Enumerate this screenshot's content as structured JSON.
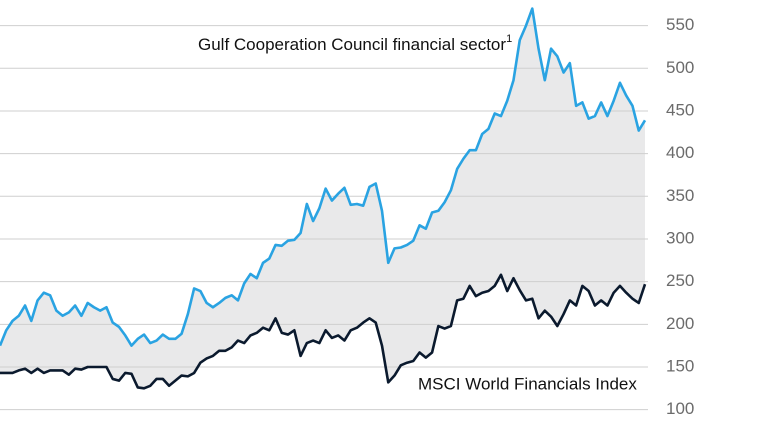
{
  "chart_data": {
    "type": "line",
    "series": [
      {
        "name": "Gulf Cooperation Council financial sector",
        "footnote": "1",
        "color": "#2aa3e2",
        "values": [
          175,
          193,
          204,
          210,
          222,
          204,
          228,
          237,
          234,
          216,
          210,
          214,
          222,
          210,
          225,
          220,
          216,
          220,
          202,
          197,
          187,
          175,
          183,
          188,
          178,
          181,
          188,
          183,
          183,
          189,
          212,
          242,
          239,
          225,
          220,
          225,
          231,
          234,
          228,
          248,
          259,
          254,
          272,
          277,
          293,
          292,
          298,
          299,
          307,
          341,
          321,
          336,
          359,
          345,
          353,
          360,
          340,
          341,
          339,
          361,
          365,
          333,
          272,
          289,
          290,
          293,
          298,
          316,
          312,
          331,
          333,
          343,
          357,
          382,
          394,
          404,
          404,
          423,
          429,
          447,
          444,
          462,
          486,
          533,
          550,
          570,
          523,
          486,
          523,
          514,
          495,
          506,
          456,
          460,
          441,
          444,
          460,
          444,
          462,
          483,
          468,
          456,
          427,
          439
        ]
      },
      {
        "name": "MSCI World Financials Index",
        "color": "#0b1a2e",
        "values": [
          143,
          143,
          143,
          146,
          148,
          143,
          148,
          143,
          146,
          146,
          146,
          141,
          148,
          147,
          150,
          150,
          150,
          150,
          136,
          134,
          143,
          142,
          126,
          125,
          128,
          136,
          136,
          128,
          134,
          140,
          139,
          143,
          155,
          160,
          163,
          169,
          169,
          173,
          181,
          178,
          187,
          190,
          196,
          193,
          207,
          190,
          188,
          193,
          163,
          178,
          181,
          178,
          193,
          184,
          187,
          181,
          193,
          196,
          202,
          207,
          202,
          175,
          132,
          140,
          152,
          155,
          157,
          167,
          161,
          167,
          198,
          195,
          198,
          228,
          230,
          245,
          233,
          237,
          239,
          245,
          258,
          239,
          254,
          240,
          228,
          230,
          207,
          216,
          209,
          198,
          212,
          228,
          222,
          245,
          239,
          222,
          228,
          222,
          237,
          245,
          237,
          230,
          225,
          247
        ]
      }
    ],
    "fill_between": "#e9e9ea",
    "ylim": [
      75,
      580
    ],
    "yticks": [
      100,
      150,
      200,
      250,
      300,
      350,
      400,
      450,
      500,
      550
    ],
    "grid": true,
    "y_axis_side": "right"
  }
}
